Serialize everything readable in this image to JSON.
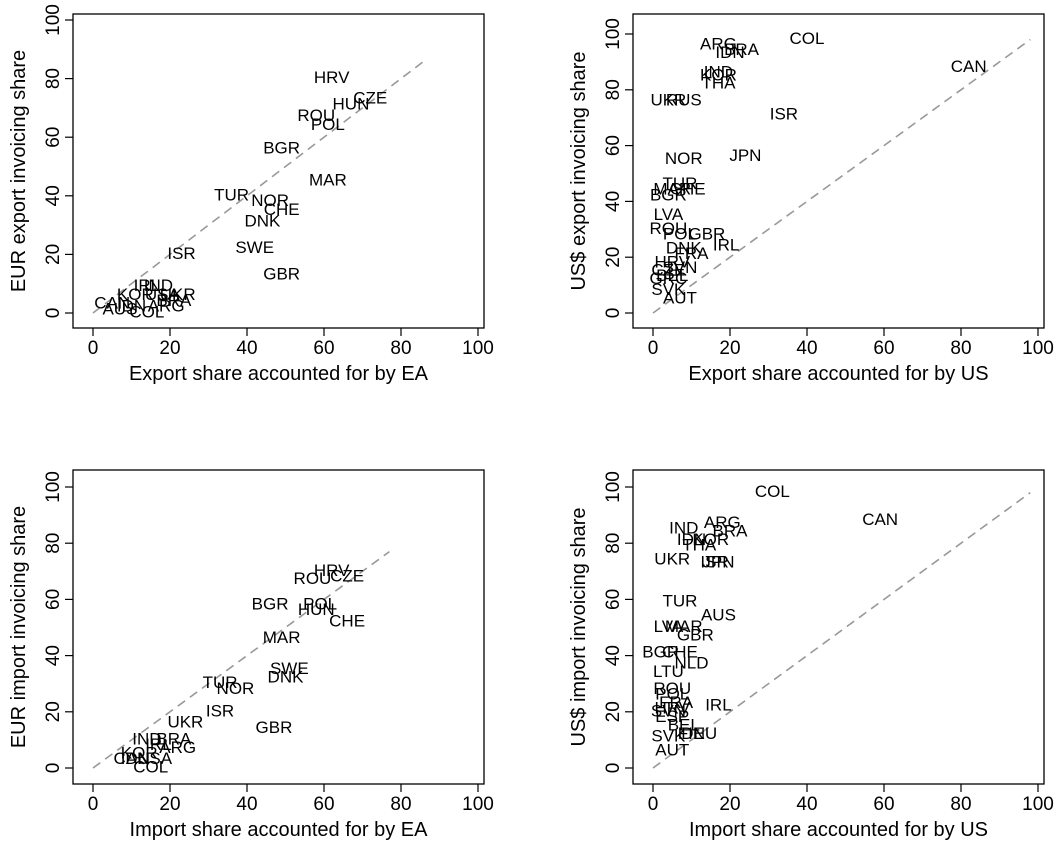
{
  "chart_data": [
    {
      "type": "scatter",
      "xlabel": "Export share accounted for by EA",
      "ylabel": "EUR export invoicing share",
      "xlim": [
        0,
        100
      ],
      "ylim": [
        0,
        100
      ],
      "xticks": [
        "0",
        "20",
        "40",
        "60",
        "80",
        "100"
      ],
      "yticks": [
        "0",
        "20",
        "40",
        "60",
        "80",
        "100"
      ],
      "reference_line": {
        "style": "dashed",
        "color": "#999999",
        "from": [
          0,
          0
        ],
        "to": [
          86,
          86
        ]
      },
      "points": [
        {
          "label": "HRV",
          "x": 62,
          "y": 80
        },
        {
          "label": "HUN",
          "x": 67,
          "y": 71
        },
        {
          "label": "CZE",
          "x": 72,
          "y": 73
        },
        {
          "label": "ROU",
          "x": 58,
          "y": 67
        },
        {
          "label": "POL",
          "x": 61,
          "y": 64
        },
        {
          "label": "BGR",
          "x": 49,
          "y": 56
        },
        {
          "label": "MAR",
          "x": 61,
          "y": 45
        },
        {
          "label": "TUR",
          "x": 36,
          "y": 40
        },
        {
          "label": "NOR",
          "x": 46,
          "y": 38
        },
        {
          "label": "CHE",
          "x": 49,
          "y": 35
        },
        {
          "label": "DNK",
          "x": 44,
          "y": 31
        },
        {
          "label": "SWE",
          "x": 42,
          "y": 22
        },
        {
          "label": "ISR",
          "x": 23,
          "y": 20
        },
        {
          "label": "GBR",
          "x": 49,
          "y": 13
        },
        {
          "label": "IRL",
          "x": 14,
          "y": 9
        },
        {
          "label": "IND",
          "x": 17,
          "y": 9
        },
        {
          "label": "KOR",
          "x": 11,
          "y": 6
        },
        {
          "label": "USA",
          "x": 18,
          "y": 6
        },
        {
          "label": "UKR",
          "x": 22,
          "y": 6
        },
        {
          "label": "BRA",
          "x": 21,
          "y": 4
        },
        {
          "label": "CAN",
          "x": 5,
          "y": 3
        },
        {
          "label": "IDN",
          "x": 10,
          "y": 2
        },
        {
          "label": "ARG",
          "x": 19,
          "y": 2
        },
        {
          "label": "AUS",
          "x": 7,
          "y": 1
        },
        {
          "label": "COL",
          "x": 14,
          "y": 0
        }
      ]
    },
    {
      "type": "scatter",
      "xlabel": "Export share accounted for by US",
      "ylabel": "US$ export invoicing share",
      "xlim": [
        0,
        100
      ],
      "ylim": [
        0,
        100
      ],
      "xticks": [
        "0",
        "20",
        "40",
        "60",
        "80",
        "100"
      ],
      "yticks": [
        "0",
        "20",
        "40",
        "60",
        "80",
        "100"
      ],
      "reference_line": {
        "style": "dashed",
        "color": "#999999",
        "from": [
          0,
          0
        ],
        "to": [
          98,
          98
        ]
      },
      "points": [
        {
          "label": "COL",
          "x": 40,
          "y": 98
        },
        {
          "label": "ARG",
          "x": 17,
          "y": 96
        },
        {
          "label": "IDN",
          "x": 20,
          "y": 93
        },
        {
          "label": "BRA",
          "x": 23,
          "y": 94
        },
        {
          "label": "CAN",
          "x": 82,
          "y": 88
        },
        {
          "label": "IND",
          "x": 17,
          "y": 86
        },
        {
          "label": "KOR",
          "x": 17,
          "y": 85
        },
        {
          "label": "THA",
          "x": 17,
          "y": 82
        },
        {
          "label": "UKR",
          "x": 4,
          "y": 76
        },
        {
          "label": "RUS",
          "x": 8,
          "y": 76
        },
        {
          "label": "ISR",
          "x": 34,
          "y": 71
        },
        {
          "label": "NOR",
          "x": 8,
          "y": 55
        },
        {
          "label": "JPN",
          "x": 24,
          "y": 56
        },
        {
          "label": "TUR",
          "x": 7,
          "y": 46
        },
        {
          "label": "MAR",
          "x": 5,
          "y": 44
        },
        {
          "label": "CHE",
          "x": 9,
          "y": 44
        },
        {
          "label": "BGR",
          "x": 4,
          "y": 42
        },
        {
          "label": "LVA",
          "x": 4,
          "y": 35
        },
        {
          "label": "ROU",
          "x": 4,
          "y": 30
        },
        {
          "label": "GBR",
          "x": 14,
          "y": 28
        },
        {
          "label": "POL",
          "x": 7,
          "y": 28
        },
        {
          "label": "IRL",
          "x": 19,
          "y": 24
        },
        {
          "label": "DNK",
          "x": 8,
          "y": 23
        },
        {
          "label": "FRA",
          "x": 10,
          "y": 21
        },
        {
          "label": "HRV",
          "x": 5,
          "y": 18
        },
        {
          "label": "SVN",
          "x": 7,
          "y": 16
        },
        {
          "label": "CZE",
          "x": 4,
          "y": 15
        },
        {
          "label": "BEL",
          "x": 5,
          "y": 13
        },
        {
          "label": "GRC",
          "x": 4,
          "y": 12
        },
        {
          "label": "SVK",
          "x": 4,
          "y": 8
        },
        {
          "label": "AUT",
          "x": 7,
          "y": 5
        }
      ]
    },
    {
      "type": "scatter",
      "xlabel": "Import share accounted for by EA",
      "ylabel": "EUR import invoicing share",
      "xlim": [
        0,
        100
      ],
      "ylim": [
        0,
        100
      ],
      "xticks": [
        "0",
        "20",
        "40",
        "60",
        "80",
        "100"
      ],
      "yticks": [
        "0",
        "20",
        "40",
        "60",
        "80",
        "100"
      ],
      "reference_line": {
        "style": "dashed",
        "color": "#999999",
        "from": [
          0,
          0
        ],
        "to": [
          77,
          77
        ]
      },
      "points": [
        {
          "label": "HRV",
          "x": 62,
          "y": 70
        },
        {
          "label": "CZE",
          "x": 66,
          "y": 68
        },
        {
          "label": "ROU",
          "x": 57,
          "y": 67
        },
        {
          "label": "BGR",
          "x": 46,
          "y": 58
        },
        {
          "label": "POL",
          "x": 59,
          "y": 58
        },
        {
          "label": "HUN",
          "x": 58,
          "y": 56
        },
        {
          "label": "CHE",
          "x": 66,
          "y": 52
        },
        {
          "label": "MAR",
          "x": 49,
          "y": 46
        },
        {
          "label": "SWE",
          "x": 51,
          "y": 35
        },
        {
          "label": "DNK",
          "x": 50,
          "y": 32
        },
        {
          "label": "TUR",
          "x": 33,
          "y": 30
        },
        {
          "label": "NOR",
          "x": 37,
          "y": 28
        },
        {
          "label": "ISR",
          "x": 33,
          "y": 20
        },
        {
          "label": "UKR",
          "x": 24,
          "y": 16
        },
        {
          "label": "GBR",
          "x": 47,
          "y": 14
        },
        {
          "label": "IND",
          "x": 14,
          "y": 10
        },
        {
          "label": "BRA",
          "x": 21,
          "y": 10
        },
        {
          "label": "ARG",
          "x": 22,
          "y": 7
        },
        {
          "label": "IRL",
          "x": 17,
          "y": 8
        },
        {
          "label": "KOR",
          "x": 12,
          "y": 5
        },
        {
          "label": "IDN",
          "x": 11,
          "y": 3
        },
        {
          "label": "CAN",
          "x": 10,
          "y": 3
        },
        {
          "label": "USA",
          "x": 16,
          "y": 3
        },
        {
          "label": "COL",
          "x": 15,
          "y": 0
        }
      ]
    },
    {
      "type": "scatter",
      "xlabel": "Import share accounted for by US",
      "ylabel": "US$ import invoicing share",
      "xlim": [
        0,
        100
      ],
      "ylim": [
        0,
        100
      ],
      "xticks": [
        "0",
        "20",
        "40",
        "60",
        "80",
        "100"
      ],
      "yticks": [
        "0",
        "20",
        "40",
        "60",
        "80",
        "100"
      ],
      "reference_line": {
        "style": "dashed",
        "color": "#999999",
        "from": [
          0,
          0
        ],
        "to": [
          98,
          98
        ]
      },
      "points": [
        {
          "label": "COL",
          "x": 31,
          "y": 98
        },
        {
          "label": "CAN",
          "x": 59,
          "y": 88
        },
        {
          "label": "ARG",
          "x": 18,
          "y": 87
        },
        {
          "label": "BRA",
          "x": 20,
          "y": 84
        },
        {
          "label": "IND",
          "x": 8,
          "y": 85
        },
        {
          "label": "IDN",
          "x": 10,
          "y": 81
        },
        {
          "label": "KOR",
          "x": 15,
          "y": 81
        },
        {
          "label": "THA",
          "x": 12,
          "y": 79
        },
        {
          "label": "UKR",
          "x": 5,
          "y": 74
        },
        {
          "label": "ISR",
          "x": 16,
          "y": 73
        },
        {
          "label": "JPN",
          "x": 17,
          "y": 73
        },
        {
          "label": "TUR",
          "x": 7,
          "y": 59
        },
        {
          "label": "AUS",
          "x": 17,
          "y": 54
        },
        {
          "label": "LVA",
          "x": 4,
          "y": 50
        },
        {
          "label": "MAR",
          "x": 8,
          "y": 50
        },
        {
          "label": "GBR",
          "x": 11,
          "y": 47
        },
        {
          "label": "BGR",
          "x": 2,
          "y": 41
        },
        {
          "label": "CHE",
          "x": 7,
          "y": 41
        },
        {
          "label": "NLD",
          "x": 10,
          "y": 37
        },
        {
          "label": "LTU",
          "x": 4,
          "y": 34
        },
        {
          "label": "ROU",
          "x": 5,
          "y": 28
        },
        {
          "label": "POL",
          "x": 5,
          "y": 26
        },
        {
          "label": "FRA",
          "x": 6,
          "y": 23
        },
        {
          "label": "IRL",
          "x": 17,
          "y": 22
        },
        {
          "label": "HRV",
          "x": 5,
          "y": 21
        },
        {
          "label": "SVN",
          "x": 4,
          "y": 20
        },
        {
          "label": "ESP",
          "x": 5,
          "y": 18
        },
        {
          "label": "BEL",
          "x": 8,
          "y": 15
        },
        {
          "label": "FIN",
          "x": 10,
          "y": 12
        },
        {
          "label": "DEU",
          "x": 12,
          "y": 12
        },
        {
          "label": "SVK",
          "x": 4,
          "y": 11
        },
        {
          "label": "AUT",
          "x": 5,
          "y": 6
        }
      ]
    }
  ]
}
